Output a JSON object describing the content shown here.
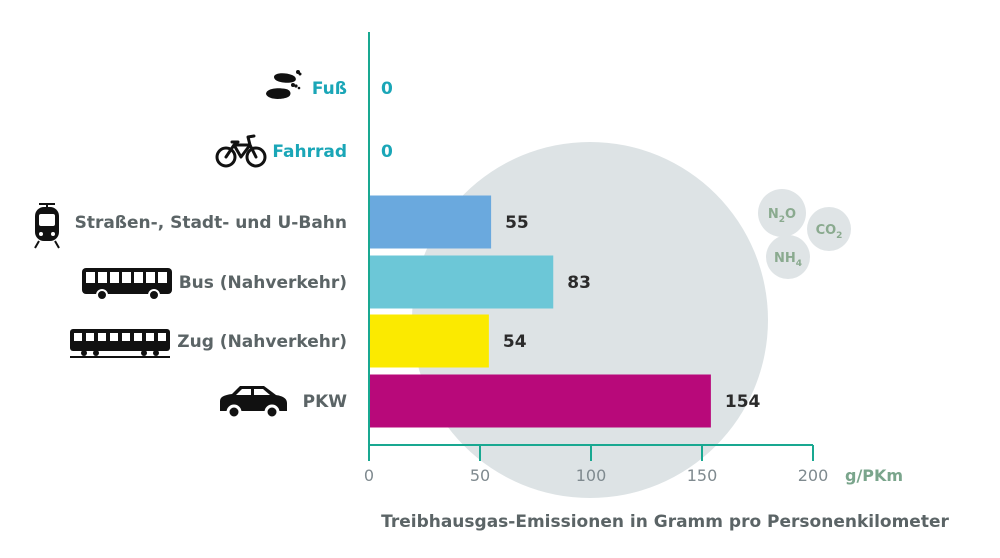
{
  "chart_data": {
    "type": "bar",
    "orientation": "horizontal",
    "categories": [
      "Fuß",
      "Fahrrad",
      "Straßen-, Stadt- und U-Bahn",
      "Bus (Nahverkehr)",
      "Zug (Nahverkehr)",
      "PKW"
    ],
    "values": [
      0,
      0,
      55,
      83,
      54,
      154
    ],
    "value_labels": [
      "0",
      "0",
      "55",
      "83",
      "54",
      "154"
    ],
    "bar_colors": [
      "#1aa6b7",
      "#1aa6b7",
      "#6aa9de",
      "#6cc7d7",
      "#fbea00",
      "#b8097a"
    ],
    "category_icons": [
      "footprints-icon",
      "bicycle-icon",
      "tram-icon",
      "bus-icon",
      "train-icon",
      "car-icon"
    ],
    "xlim": [
      0,
      200
    ],
    "x_ticks": [
      "0",
      "50",
      "100",
      "150",
      "200"
    ],
    "x_unit": "g/PKm",
    "xlabel": "Treibhausgas-Emissionen in Gramm pro Personenkilometer",
    "ylabel": "",
    "title": "",
    "grid": false,
    "background_gases": [
      {
        "base": "N",
        "sub": "2",
        "tail": "O"
      },
      {
        "base": "CO",
        "sub": "2",
        "tail": ""
      },
      {
        "base": "NH",
        "sub": "4",
        "tail": ""
      }
    ]
  },
  "colors": {
    "axis": "#19a891",
    "unit": "#7aa58c",
    "zero_labels": "#1aa6b7",
    "labels": "#5b6466",
    "values": "#2b2b2b",
    "big_circle": "#dde3e5",
    "gas_bubble": "#dfe4e6",
    "gas_text": "#8aaa8f"
  }
}
